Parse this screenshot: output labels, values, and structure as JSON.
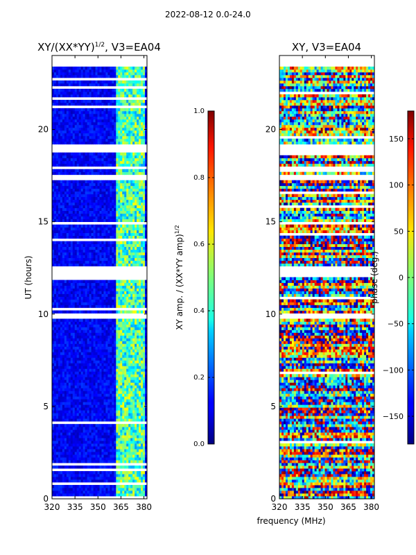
{
  "figure": {
    "suptitle": "2022-08-12 0.0-24.0",
    "shared_xlabel": "frequency (MHz)"
  },
  "chart_data": [
    {
      "type": "heatmap",
      "id": "amp",
      "title_main": "XY/(XX*YY)",
      "title_sup": "1/2",
      "title_tail": ", V3=EA04",
      "xlabel": "",
      "ylabel": "UT (hours)",
      "xlim": [
        320,
        382
      ],
      "ylim": [
        0,
        24
      ],
      "xticks": [
        320,
        335,
        350,
        365,
        380
      ],
      "yticks": [
        0,
        5,
        10,
        15,
        20
      ],
      "colorbar": {
        "label_main": "XY amp. / (XX*YY amp)",
        "label_sup": "1/2",
        "range": [
          0.0,
          1.0
        ],
        "ticks": [
          0.0,
          0.2,
          0.4,
          0.6,
          0.8,
          1.0
        ],
        "tick_labels": [
          "0.0",
          "0.2",
          "0.4",
          "0.6",
          "0.8",
          "1.0"
        ],
        "colormap": "jet"
      },
      "flagged_time_ranges_hours": [
        [
          23.4,
          24.0
        ],
        [
          18.8,
          19.2
        ],
        [
          12.0,
          12.6
        ],
        [
          9.8,
          10.0
        ],
        [
          17.3,
          17.6
        ]
      ],
      "background_value": 0.12,
      "bright_band_MHz": [
        362,
        380
      ],
      "bright_band_value": 0.45
    },
    {
      "type": "heatmap",
      "id": "phase",
      "title_main": "XY, V3=EA04",
      "xlabel": "",
      "ylabel": "",
      "xlim": [
        320,
        382
      ],
      "ylim": [
        0,
        24
      ],
      "xticks": [
        320,
        335,
        350,
        365,
        380
      ],
      "yticks": [
        0,
        5,
        10,
        15,
        20
      ],
      "colorbar": {
        "label_main": "phase (deg.)",
        "range": [
          -180,
          180
        ],
        "ticks": [
          -150,
          -100,
          -50,
          0,
          50,
          100,
          150
        ],
        "tick_labels": [
          "−150",
          "−100",
          "−50",
          "0",
          "50",
          "100",
          "150"
        ],
        "colormap": "jet"
      },
      "flagged_time_ranges_hours": [
        [
          23.4,
          24.0
        ],
        [
          18.8,
          19.2
        ],
        [
          12.0,
          12.6
        ],
        [
          9.8,
          10.0
        ],
        [
          17.3,
          17.6
        ]
      ]
    }
  ]
}
